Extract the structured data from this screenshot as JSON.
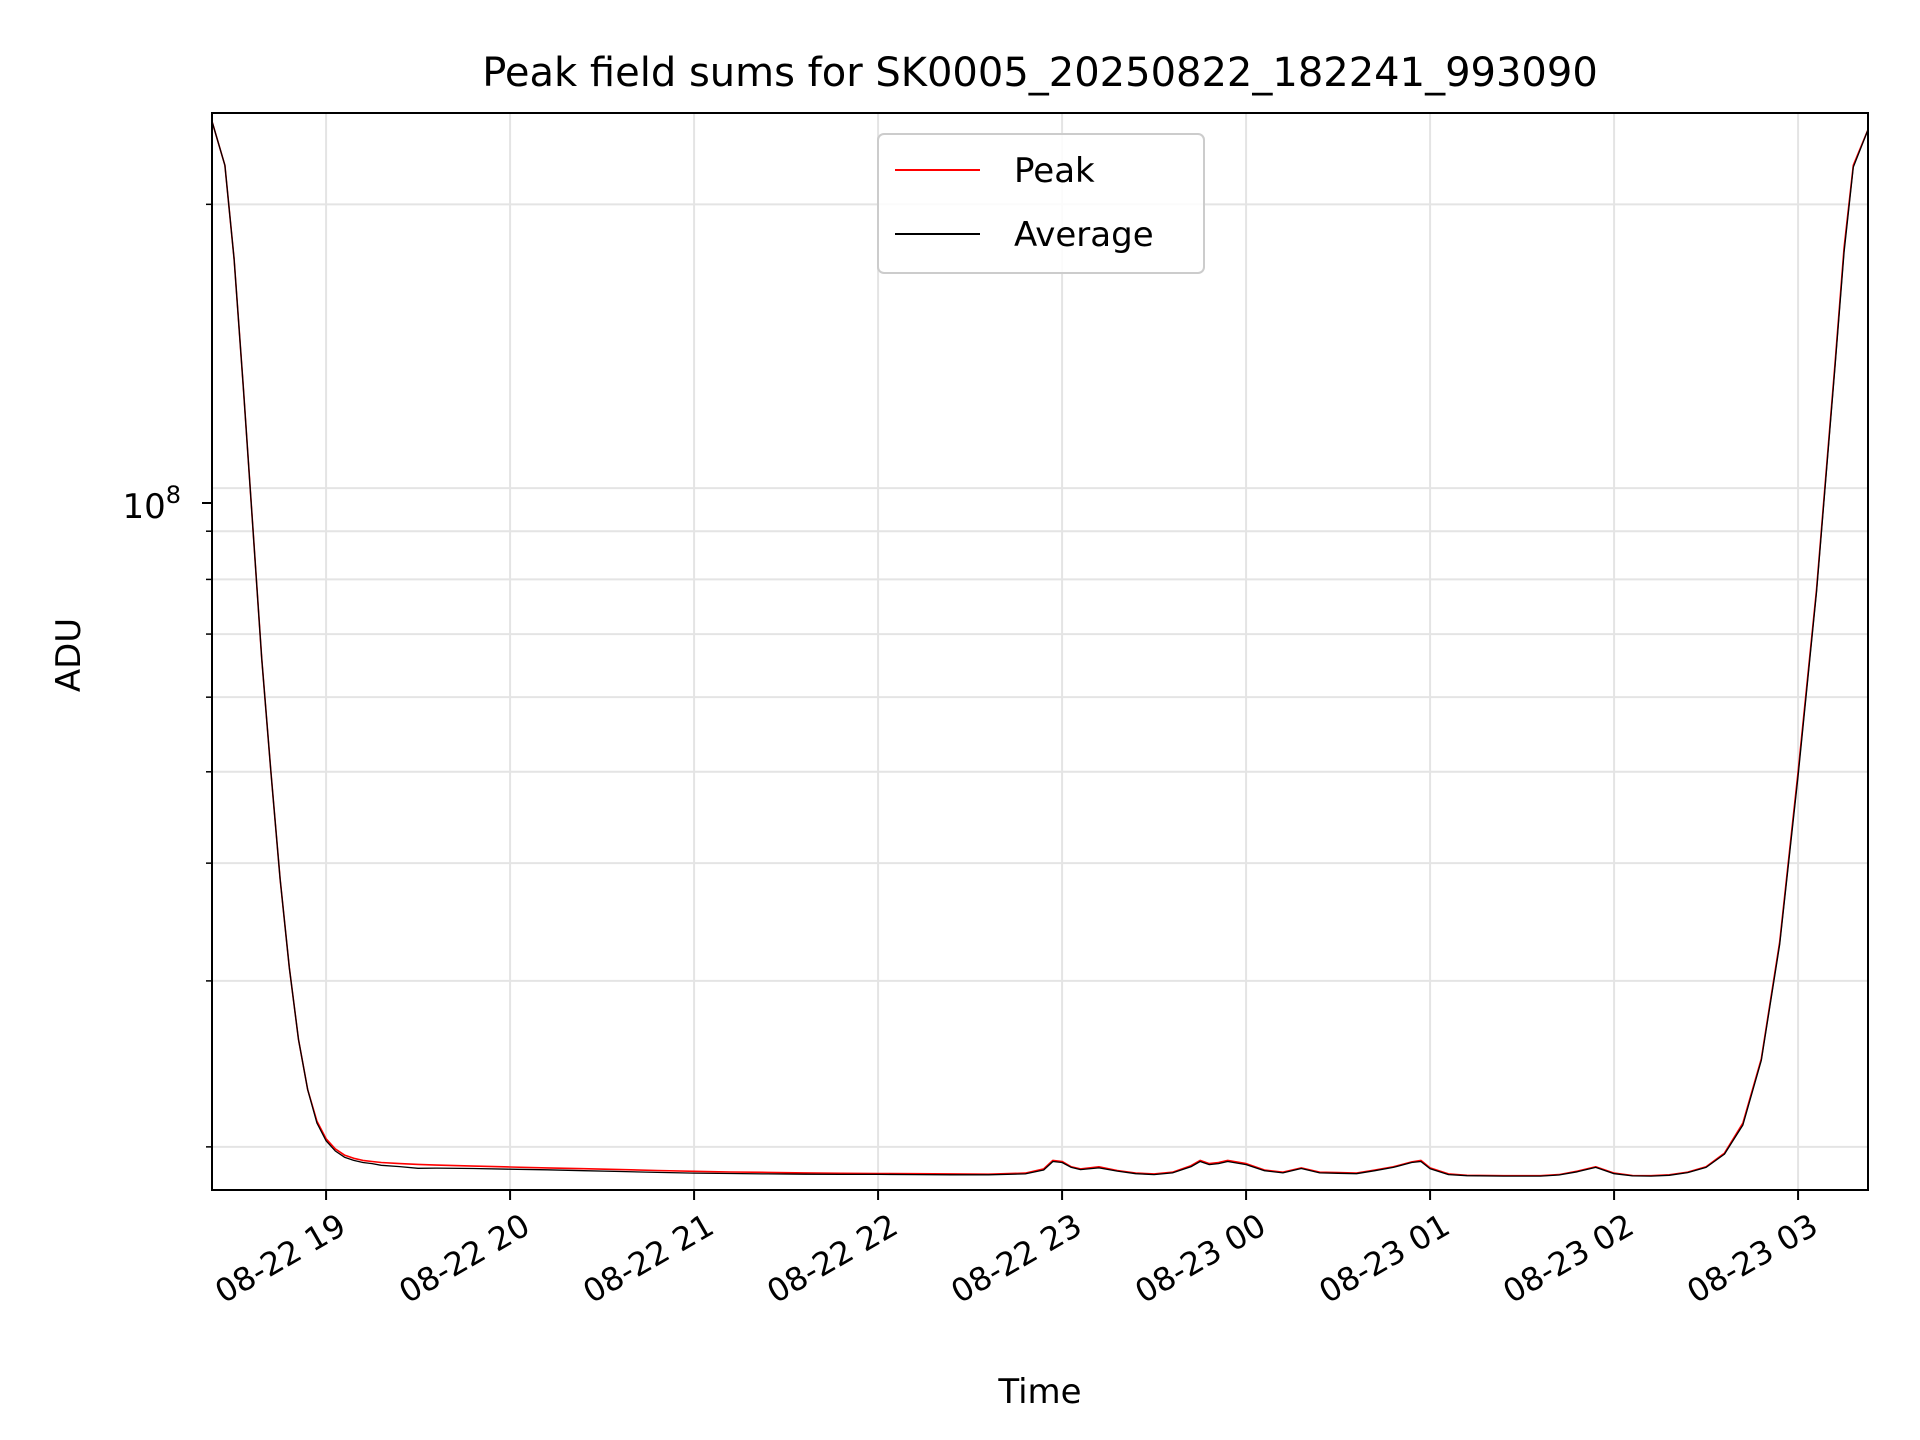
{
  "chart_data": {
    "type": "line",
    "title": "Peak field sums for SK0005_20250822_182241_993090",
    "xlabel": "Time",
    "ylabel": "ADU",
    "x_ticks": [
      "08-22 19",
      "08-22 20",
      "08-22 21",
      "08-22 22",
      "08-22 23",
      "08-23 00",
      "08-23 01",
      "08-23 02",
      "08-23 03"
    ],
    "x_tick_hours": [
      19,
      20,
      21,
      22,
      23,
      24,
      25,
      26,
      27
    ],
    "xlim_hours": [
      18.38,
      27.38
    ],
    "y_scale": "log",
    "y_tick_label_base": "10",
    "y_tick_label_exp": "8",
    "ylim": [
      18000000,
      250000000
    ],
    "grid": true,
    "legend_position": "top-center",
    "series": [
      {
        "name": "Peak",
        "color": "#ff0000",
        "x_hours": [
          18.38,
          18.45,
          18.5,
          18.55,
          18.6,
          18.65,
          18.7,
          18.75,
          18.8,
          18.85,
          18.9,
          18.95,
          19.0,
          19.05,
          19.1,
          19.15,
          19.2,
          19.25,
          19.3,
          19.4,
          19.5,
          19.6,
          19.8,
          20.0,
          20.2,
          20.4,
          20.6,
          20.8,
          21.0,
          21.2,
          21.4,
          21.6,
          21.8,
          22.0,
          22.2,
          22.4,
          22.6,
          22.8,
          22.9,
          22.95,
          23.0,
          23.05,
          23.1,
          23.2,
          23.3,
          23.4,
          23.5,
          23.6,
          23.7,
          23.75,
          23.8,
          23.85,
          23.9,
          24.0,
          24.1,
          24.2,
          24.3,
          24.4,
          24.5,
          24.6,
          24.7,
          24.8,
          24.9,
          24.95,
          25.0,
          25.1,
          25.2,
          25.4,
          25.6,
          25.7,
          25.8,
          25.9,
          26.0,
          26.1,
          26.2,
          26.3,
          26.4,
          26.5,
          26.6,
          26.7,
          26.8,
          26.9,
          27.0,
          27.1,
          27.2,
          27.25,
          27.3,
          27.38
        ],
        "values": [
          245000000,
          220000000,
          175000000,
          128000000,
          92000000,
          66000000,
          50000000,
          38500000,
          31000000,
          26000000,
          23000000,
          21300000,
          20400000,
          19900000,
          19600000,
          19450000,
          19350000,
          19300000,
          19250000,
          19200000,
          19160000,
          19130000,
          19080000,
          19040000,
          19000000,
          18960000,
          18920000,
          18880000,
          18840000,
          18810000,
          18790000,
          18770000,
          18750000,
          18740000,
          18730000,
          18720000,
          18710000,
          18760000,
          18950000,
          19350000,
          19300000,
          19050000,
          18950000,
          19050000,
          18880000,
          18760000,
          18720000,
          18800000,
          19100000,
          19350000,
          19200000,
          19250000,
          19350000,
          19200000,
          18900000,
          18800000,
          19000000,
          18800000,
          18780000,
          18760000,
          18900000,
          19050000,
          19280000,
          19350000,
          19000000,
          18720000,
          18660000,
          18640000,
          18640000,
          18690000,
          18850000,
          19050000,
          18760000,
          18650000,
          18640000,
          18680000,
          18800000,
          19050000,
          19700000,
          21200000,
          24800000,
          33000000,
          50000000,
          78000000,
          135000000,
          180000000,
          220000000,
          240000000
        ]
      },
      {
        "name": "Average",
        "color": "#000000",
        "x_hours": [
          18.38,
          18.45,
          18.5,
          18.55,
          18.6,
          18.65,
          18.7,
          18.75,
          18.8,
          18.85,
          18.9,
          18.95,
          19.0,
          19.05,
          19.1,
          19.15,
          19.2,
          19.25,
          19.3,
          19.4,
          19.5,
          19.6,
          19.8,
          20.0,
          20.2,
          20.4,
          20.6,
          20.8,
          21.0,
          21.2,
          21.4,
          21.6,
          21.8,
          22.0,
          22.2,
          22.4,
          22.6,
          22.8,
          22.9,
          22.95,
          23.0,
          23.05,
          23.1,
          23.2,
          23.3,
          23.4,
          23.5,
          23.6,
          23.7,
          23.75,
          23.8,
          23.85,
          23.9,
          24.0,
          24.1,
          24.2,
          24.3,
          24.4,
          24.5,
          24.6,
          24.7,
          24.8,
          24.9,
          24.95,
          25.0,
          25.1,
          25.2,
          25.4,
          25.6,
          25.7,
          25.8,
          25.9,
          26.0,
          26.1,
          26.2,
          26.3,
          26.4,
          26.5,
          26.6,
          26.7,
          26.8,
          26.9,
          27.0,
          27.1,
          27.2,
          27.25,
          27.3,
          27.38
        ],
        "values": [
          245000000,
          220000000,
          175000000,
          128000000,
          92000000,
          66000000,
          50000000,
          38500000,
          31000000,
          26000000,
          23000000,
          21200000,
          20300000,
          19800000,
          19500000,
          19350000,
          19250000,
          19200000,
          19120000,
          19060000,
          18980000,
          18990000,
          18970000,
          18940000,
          18910000,
          18870000,
          18830000,
          18790000,
          18760000,
          18740000,
          18720000,
          18710000,
          18700000,
          18700000,
          18690000,
          18680000,
          18680000,
          18720000,
          18900000,
          19300000,
          19250000,
          19020000,
          18920000,
          19000000,
          18850000,
          18730000,
          18690000,
          18770000,
          19050000,
          19300000,
          19150000,
          19200000,
          19300000,
          19150000,
          18870000,
          18770000,
          18970000,
          18770000,
          18750000,
          18730000,
          18870000,
          19020000,
          19250000,
          19300000,
          18960000,
          18690000,
          18640000,
          18620000,
          18620000,
          18670000,
          18820000,
          19020000,
          18730000,
          18630000,
          18620000,
          18660000,
          18780000,
          19020000,
          19650000,
          21100000,
          24700000,
          32800000,
          49500000,
          77500000,
          134000000,
          178000000,
          219000000,
          240000000
        ]
      }
    ]
  }
}
